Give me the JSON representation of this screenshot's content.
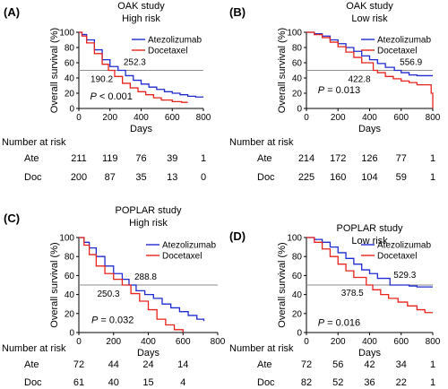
{
  "colors": {
    "atezolizumab": "#1f2bd0",
    "docetaxel": "#e8231c",
    "median_line": "#8c8c8c",
    "axis": "#000000"
  },
  "chart_data": [
    {
      "type": "line",
      "panel_label": "(A)",
      "title": "OAK study",
      "subtitle": "High risk",
      "xlabel": "Days",
      "ylabel": "Overall survival (%)",
      "xlim": [
        0,
        800
      ],
      "ylim": [
        0,
        100
      ],
      "xticks": [
        0,
        200,
        400,
        600,
        800
      ],
      "yticks": [
        0,
        20,
        40,
        60,
        80,
        100
      ],
      "grid": false,
      "legend_position": "top-right",
      "series": [
        {
          "name": "Atezolizumab",
          "x": [
            0,
            20,
            50,
            100,
            150,
            200,
            252,
            300,
            350,
            400,
            450,
            500,
            550,
            600,
            650,
            700,
            750,
            800
          ],
          "y": [
            100,
            97,
            90,
            77,
            64,
            55,
            50,
            43,
            37,
            32,
            28,
            25,
            22,
            20,
            18,
            16,
            15,
            15
          ]
        },
        {
          "name": "Docetaxel",
          "x": [
            0,
            20,
            50,
            100,
            150,
            190,
            230,
            280,
            330,
            380,
            430,
            480,
            530,
            600,
            660,
            700
          ],
          "y": [
            100,
            95,
            86,
            72,
            58,
            50,
            42,
            33,
            27,
            22,
            18,
            14,
            11,
            9,
            8,
            8
          ]
        }
      ],
      "medians": [
        {
          "series": "Atezolizumab",
          "value": 252.3,
          "label": "252.3"
        },
        {
          "series": "Docetaxel",
          "value": 190.2,
          "label": "190.2"
        }
      ],
      "p_label": "P",
      "p_text": " < 0.001",
      "risk_table": {
        "heading": "Number at risk",
        "rows": [
          {
            "label": "Ate",
            "values": [
              "211",
              "119",
              "76",
              "39",
              "1"
            ]
          },
          {
            "label": "Doc",
            "values": [
              "200",
              "87",
              "35",
              "13",
              "0"
            ]
          }
        ]
      }
    },
    {
      "type": "line",
      "panel_label": "(B)",
      "title": "OAK study",
      "subtitle": "Low risk",
      "xlabel": "Days",
      "ylabel": "Overall survival (%)",
      "xlim": [
        0,
        800
      ],
      "ylim": [
        0,
        100
      ],
      "xticks": [
        0,
        200,
        400,
        600,
        800
      ],
      "yticks": [
        0,
        20,
        40,
        60,
        80,
        100
      ],
      "grid": false,
      "legend_position": "top-right",
      "series": [
        {
          "name": "Atezolizumab",
          "x": [
            0,
            50,
            100,
            150,
            200,
            250,
            300,
            350,
            400,
            450,
            500,
            557,
            600,
            650,
            700,
            750,
            800
          ],
          "y": [
            100,
            98,
            95,
            90,
            85,
            80,
            75,
            69,
            64,
            59,
            54,
            50,
            47,
            44,
            43,
            43,
            43
          ]
        },
        {
          "name": "Docetaxel",
          "x": [
            0,
            50,
            100,
            150,
            200,
            250,
            300,
            350,
            423,
            450,
            500,
            550,
            600,
            650,
            700,
            750,
            780,
            790,
            800
          ],
          "y": [
            100,
            97,
            93,
            87,
            81,
            74,
            67,
            60,
            50,
            47,
            42,
            39,
            36,
            34,
            31,
            31,
            31,
            20,
            0
          ]
        }
      ],
      "medians": [
        {
          "series": "Atezolizumab",
          "value": 556.9,
          "label": "556.9"
        },
        {
          "series": "Docetaxel",
          "value": 422.8,
          "label": "422.8"
        }
      ],
      "p_label": "P",
      "p_text": " = 0.013",
      "risk_table": {
        "heading": "Number at risk",
        "rows": [
          {
            "label": "Ate",
            "values": [
              "214",
              "172",
              "126",
              "77",
              "1"
            ]
          },
          {
            "label": "Doc",
            "values": [
              "225",
              "160",
              "104",
              "59",
              "1"
            ]
          }
        ]
      }
    },
    {
      "type": "line",
      "panel_label": "(C)",
      "title": "POPLAR study",
      "subtitle": "High risk",
      "xlabel": "Days",
      "ylabel": "Overall survival (%)",
      "xlim": [
        0,
        800
      ],
      "ylim": [
        0,
        100
      ],
      "xticks": [
        0,
        200,
        400,
        600,
        800
      ],
      "yticks": [
        0,
        20,
        40,
        60,
        80,
        100
      ],
      "grid": false,
      "legend_position": "top-right",
      "series": [
        {
          "name": "Atezolizumab",
          "x": [
            0,
            30,
            60,
            100,
            150,
            200,
            250,
            289,
            330,
            380,
            430,
            480,
            530,
            580,
            630,
            680,
            720
          ],
          "y": [
            100,
            95,
            89,
            80,
            70,
            62,
            56,
            50,
            44,
            40,
            36,
            30,
            26,
            22,
            18,
            14,
            12
          ]
        },
        {
          "name": "Docetaxel",
          "x": [
            0,
            30,
            60,
            100,
            150,
            200,
            250,
            300,
            350,
            400,
            450,
            500,
            550,
            600
          ],
          "y": [
            100,
            92,
            82,
            70,
            62,
            56,
            50,
            41,
            33,
            24,
            14,
            8,
            3,
            0
          ]
        }
      ],
      "medians": [
        {
          "series": "Atezolizumab",
          "value": 288.8,
          "label": "288.8"
        },
        {
          "series": "Docetaxel",
          "value": 250.3,
          "label": "250.3"
        }
      ],
      "p_label": "P",
      "p_text": " = 0.032",
      "risk_table": {
        "heading": "Number at risk",
        "rows": [
          {
            "label": "Ate",
            "values": [
              "72",
              "44",
              "24",
              "14"
            ]
          },
          {
            "label": "Doc",
            "values": [
              "61",
              "40",
              "15",
              "4"
            ]
          }
        ]
      }
    },
    {
      "type": "line",
      "panel_label": "(D)",
      "title": "POPLAR study",
      "subtitle": "Low risk",
      "xlabel": "Days",
      "ylabel": "Overall survival (%)",
      "xlim": [
        0,
        800
      ],
      "ylim": [
        0,
        100
      ],
      "xticks": [
        0,
        200,
        400,
        600,
        800
      ],
      "yticks": [
        0,
        20,
        40,
        60,
        80,
        100
      ],
      "grid": false,
      "legend_position": "top-right",
      "series": [
        {
          "name": "Atezolizumab",
          "x": [
            0,
            50,
            100,
            150,
            200,
            250,
            300,
            350,
            400,
            450,
            529,
            560,
            600,
            650,
            700,
            750,
            800
          ],
          "y": [
            100,
            98,
            95,
            90,
            84,
            78,
            72,
            66,
            62,
            57,
            50,
            50,
            50,
            49,
            48,
            48,
            48
          ]
        },
        {
          "name": "Docetaxel",
          "x": [
            0,
            50,
            100,
            150,
            200,
            250,
            300,
            379,
            420,
            470,
            520,
            580,
            640,
            700,
            750,
            800
          ],
          "y": [
            100,
            95,
            88,
            80,
            72,
            65,
            58,
            50,
            45,
            40,
            36,
            32,
            28,
            24,
            21,
            21
          ]
        }
      ],
      "medians": [
        {
          "series": "Atezolizumab",
          "value": 529.3,
          "label": "529.3"
        },
        {
          "series": "Docetaxel",
          "value": 378.5,
          "label": "378.5"
        }
      ],
      "p_label": "P",
      "p_text": " = 0.016",
      "risk_table": {
        "heading": "Number at risk",
        "rows": [
          {
            "label": "Ate",
            "values": [
              "72",
              "56",
              "42",
              "34",
              "1"
            ]
          },
          {
            "label": "Doc",
            "values": [
              "82",
              "52",
              "36",
              "22",
              "1"
            ]
          }
        ]
      }
    }
  ]
}
